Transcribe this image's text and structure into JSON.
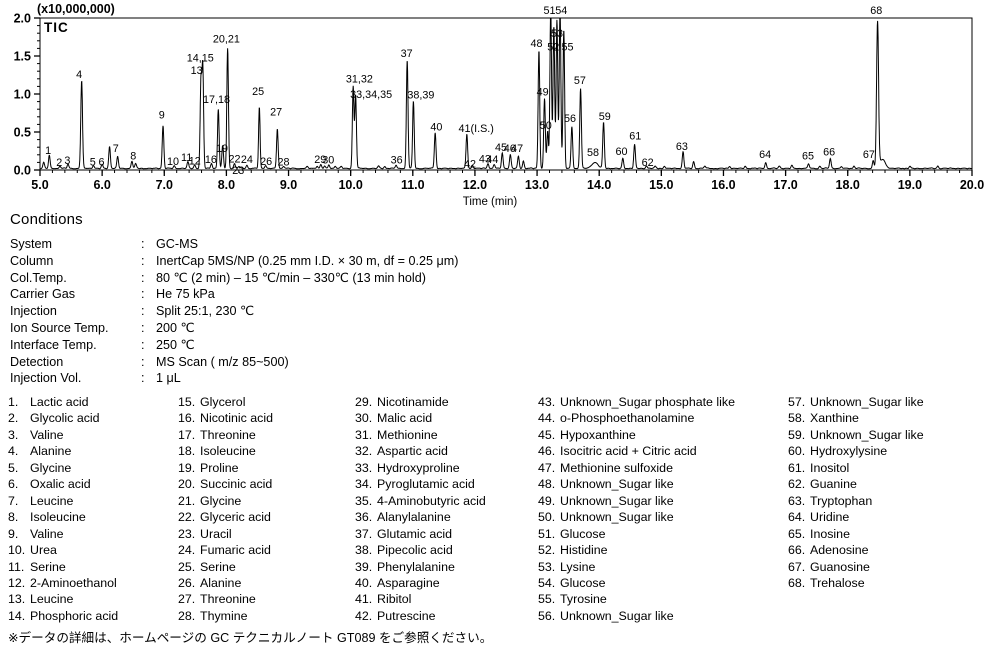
{
  "chart_data": {
    "type": "line",
    "trace_label": "TIC",
    "y_scale_label": "(x10,000,000)",
    "xlabel": "Time (min)",
    "xlim": [
      5.0,
      20.0
    ],
    "ylim": [
      0.0,
      2.0
    ],
    "x_major_tick": 1.0,
    "x_minor_tick": 0.2,
    "y_major_tick": 0.5,
    "y_minor_tick": 0.1,
    "x_tick_labels": [
      "5.0",
      "6.0",
      "7.0",
      "8.0",
      "9.0",
      "10.0",
      "11.0",
      "12.0",
      "13.0",
      "14.0",
      "15.0",
      "16.0",
      "17.0",
      "18.0",
      "19.0",
      "20.0"
    ],
    "y_tick_labels": [
      "0.0",
      "0.5",
      "1.0",
      "1.5",
      "2.0"
    ],
    "grid": false,
    "line_color": "#000000",
    "peaks": [
      {
        "label": "",
        "t": 5.06,
        "h": 0.08
      },
      {
        "label": "1",
        "t": 5.15,
        "h": 0.17,
        "lx": 5.13,
        "ly": 0.21
      },
      {
        "label": "2",
        "t": 5.32,
        "h": 0.03,
        "lx": 5.31,
        "ly": 0.05
      },
      {
        "label": "3",
        "t": 5.45,
        "h": 0.055,
        "lx": 5.44,
        "ly": 0.08
      },
      {
        "label": "4",
        "t": 5.67,
        "h": 1.15,
        "s": 0.014,
        "lx": 5.63,
        "ly": 1.21
      },
      {
        "label": "5",
        "t": 5.86,
        "h": 0.04,
        "lx": 5.85,
        "ly": 0.06
      },
      {
        "label": "6",
        "t": 6.0,
        "h": 0.05,
        "lx": 5.99,
        "ly": 0.062
      },
      {
        "label": "7",
        "t": 6.12,
        "h": 0.29,
        "lx": 6.22,
        "ly": 0.24
      },
      {
        "label": "",
        "t": 6.25,
        "h": 0.155
      },
      {
        "label": "8",
        "t": 6.48,
        "h": 0.095,
        "lx": 6.5,
        "ly": 0.135
      },
      {
        "label": "",
        "t": 6.54,
        "h": 0.06
      },
      {
        "label": "9",
        "t": 6.98,
        "h": 0.56,
        "lx": 6.96,
        "ly": 0.68
      },
      {
        "label": "10",
        "t": 7.16,
        "h": 0.035,
        "lx": 7.14,
        "ly": 0.065
      },
      {
        "label": "11",
        "t": 7.38,
        "h": 0.085,
        "lx": 7.36,
        "ly": 0.12
      },
      {
        "label": "12",
        "t": 7.49,
        "h": 0.05,
        "lx": 7.49,
        "ly": 0.075
      },
      {
        "label": "13",
        "t": 7.59,
        "h": 1.13,
        "lx": 7.52,
        "ly": 1.26
      },
      {
        "label": "14,15",
        "t": 7.62,
        "h": 1.33,
        "lx": 7.58,
        "ly": 1.43
      },
      {
        "label": "16",
        "t": 7.76,
        "h": 0.065,
        "lx": 7.75,
        "ly": 0.09
      },
      {
        "label": "17,18",
        "t": 7.87,
        "h": 0.78,
        "lx": 7.84,
        "ly": 0.88
      },
      {
        "label": "19",
        "t": 7.94,
        "h": 0.3,
        "lx": 7.93,
        "ly": 0.235
      },
      {
        "label": "20,21",
        "t": 8.02,
        "h": 1.58,
        "lx": 8.0,
        "ly": 1.68
      },
      {
        "label": "22",
        "t": 8.13,
        "h": 0.06,
        "lx": 8.13,
        "ly": 0.1
      },
      {
        "label": "23",
        "t": 8.2,
        "h": 0.025,
        "lx": 8.19,
        "ly": -0.055
      },
      {
        "label": "24",
        "t": 8.33,
        "h": 0.045,
        "lx": 8.33,
        "ly": 0.095
      },
      {
        "label": "25",
        "t": 8.53,
        "h": 0.8,
        "s": 0.012,
        "lx": 8.51,
        "ly": 0.99
      },
      {
        "label": "26",
        "t": 8.63,
        "h": 0.04,
        "lx": 8.64,
        "ly": 0.065
      },
      {
        "label": "27",
        "t": 8.82,
        "h": 0.52,
        "lx": 8.8,
        "ly": 0.72
      },
      {
        "label": "28",
        "t": 8.92,
        "h": 0.03,
        "lx": 8.92,
        "ly": 0.06
      },
      {
        "label": "",
        "t": 9.3,
        "h": 0.02
      },
      {
        "label": "",
        "t": 9.46,
        "h": 0.03
      },
      {
        "label": "29",
        "t": 9.52,
        "h": 0.05,
        "lx": 9.51,
        "ly": 0.095
      },
      {
        "label": "",
        "t": 9.58,
        "h": 0.03
      },
      {
        "label": "30",
        "t": 9.65,
        "h": 0.045,
        "lx": 9.64,
        "ly": 0.085
      },
      {
        "label": "",
        "t": 9.75,
        "h": 0.03
      },
      {
        "label": "",
        "t": 9.85,
        "h": 0.025
      },
      {
        "label": "31,32",
        "t": 10.04,
        "h": 1.08,
        "lx": 10.14,
        "ly": 1.15
      },
      {
        "label": "33,34,35",
        "t": 10.08,
        "h": 0.96,
        "lx": 10.33,
        "ly": 0.95
      },
      {
        "label": "",
        "t": 10.45,
        "h": 0.03
      },
      {
        "label": "",
        "t": 10.55,
        "h": 0.025
      },
      {
        "label": "36",
        "t": 10.73,
        "h": 0.045,
        "lx": 10.74,
        "ly": 0.085
      },
      {
        "label": "37",
        "t": 10.91,
        "h": 1.42,
        "lx": 10.9,
        "ly": 1.49
      },
      {
        "label": "38,39",
        "t": 11.01,
        "h": 0.88,
        "lx": 11.13,
        "ly": 0.94
      },
      {
        "label": "40",
        "t": 11.36,
        "h": 0.47,
        "lx": 11.38,
        "ly": 0.52
      },
      {
        "label": "41(I.S.)",
        "t": 11.87,
        "h": 0.45,
        "lx": 12.02,
        "ly": 0.5
      },
      {
        "label": "42",
        "t": 11.96,
        "h": 0.045,
        "lx": 11.92,
        "ly": 0.035
      },
      {
        "label": "43",
        "t": 12.21,
        "h": 0.065,
        "lx": 12.16,
        "ly": 0.1
      },
      {
        "label": "44",
        "t": 12.31,
        "h": 0.055,
        "lx": 12.28,
        "ly": 0.095
      },
      {
        "label": "45",
        "t": 12.44,
        "h": 0.2,
        "lx": 12.42,
        "ly": 0.25
      },
      {
        "label": "46",
        "t": 12.57,
        "h": 0.18,
        "lx": 12.56,
        "ly": 0.24
      },
      {
        "label": "47",
        "t": 12.7,
        "h": 0.16,
        "lx": 12.68,
        "ly": 0.235
      },
      {
        "label": "",
        "t": 12.78,
        "h": 0.1
      },
      {
        "label": "48",
        "t": 13.03,
        "h": 1.55,
        "lx": 12.99,
        "ly": 1.62
      },
      {
        "label": "49",
        "t": 13.12,
        "h": 0.92,
        "lx": 13.09,
        "ly": 0.98
      },
      {
        "label": "50",
        "t": 13.17,
        "h": 0.49,
        "lx": 13.14,
        "ly": 0.54
      },
      {
        "label": "51",
        "t": 13.22,
        "h": 2.1,
        "lx": 13.2,
        "ly": 2.05
      },
      {
        "label": "52",
        "t": 13.27,
        "h": 1.87,
        "lx": 13.26,
        "ly": 1.57
      },
      {
        "label": "53",
        "t": 13.32,
        "h": 1.95,
        "lx": 13.32,
        "ly": 1.75
      },
      {
        "label": "54",
        "t": 13.37,
        "h": 2.1,
        "lx": 13.39,
        "ly": 2.05
      },
      {
        "label": "55",
        "t": 13.43,
        "h": 1.82,
        "lx": 13.49,
        "ly": 1.57
      },
      {
        "label": "56",
        "t": 13.56,
        "h": 0.55,
        "lx": 13.53,
        "ly": 0.63
      },
      {
        "label": "57",
        "t": 13.7,
        "h": 1.05,
        "lx": 13.69,
        "ly": 1.13
      },
      {
        "label": "58",
        "t": 13.93,
        "h": 0.08,
        "s": 0.05,
        "lx": 13.9,
        "ly": 0.185
      },
      {
        "label": "59",
        "t": 14.07,
        "h": 0.6,
        "lx": 14.09,
        "ly": 0.66
      },
      {
        "label": "60",
        "t": 14.38,
        "h": 0.13,
        "lx": 14.36,
        "ly": 0.195
      },
      {
        "label": "61",
        "t": 14.57,
        "h": 0.31,
        "lx": 14.58,
        "ly": 0.4
      },
      {
        "label": "62",
        "t": 14.76,
        "h": 0.035,
        "lx": 14.78,
        "ly": 0.055
      },
      {
        "label": "",
        "t": 14.9,
        "h": 0.025
      },
      {
        "label": "",
        "t": 15.05,
        "h": 0.03
      },
      {
        "label": "63",
        "t": 15.35,
        "h": 0.22,
        "lx": 15.33,
        "ly": 0.26
      },
      {
        "label": "",
        "t": 15.52,
        "h": 0.09
      },
      {
        "label": "",
        "t": 15.7,
        "h": 0.03
      },
      {
        "label": "",
        "t": 16.1,
        "h": 0.025
      },
      {
        "label": "",
        "t": 16.35,
        "h": 0.03
      },
      {
        "label": "64",
        "t": 16.68,
        "h": 0.08,
        "lx": 16.67,
        "ly": 0.155
      },
      {
        "label": "",
        "t": 16.9,
        "h": 0.03
      },
      {
        "label": "",
        "t": 17.1,
        "h": 0.04
      },
      {
        "label": "65",
        "t": 17.37,
        "h": 0.06,
        "lx": 17.36,
        "ly": 0.135
      },
      {
        "label": "",
        "t": 17.55,
        "h": 0.03
      },
      {
        "label": "66",
        "t": 17.72,
        "h": 0.13,
        "lx": 17.7,
        "ly": 0.19
      },
      {
        "label": "",
        "t": 17.9,
        "h": 0.025
      },
      {
        "label": "",
        "t": 18.1,
        "h": 0.03
      },
      {
        "label": "67",
        "t": 18.41,
        "h": 0.1,
        "lx": 18.34,
        "ly": 0.155
      },
      {
        "label": "68",
        "t": 18.48,
        "h": 1.91,
        "s": 0.016,
        "lx": 18.46,
        "ly": 2.05
      },
      {
        "label": "",
        "t": 18.56,
        "h": 0.12,
        "s": 0.045
      },
      {
        "label": "",
        "t": 19.0,
        "h": 0.025
      },
      {
        "label": "",
        "t": 19.45,
        "h": 0.035
      }
    ]
  },
  "conditions": {
    "heading": "Conditions",
    "separator": ":",
    "rows": [
      {
        "label": "System",
        "value": "GC-MS"
      },
      {
        "label": "Column",
        "value": "InertCap 5MS/NP (0.25 mm I.D. × 30 m, df = 0.25  μm)"
      },
      {
        "label": "Col.Temp.",
        "value": "80 ℃ (2 min) – 15 ℃/min – 330℃ (13 min hold)"
      },
      {
        "label": "Carrier Gas",
        "value": "He 75 kPa"
      },
      {
        "label": "Injection",
        "value": "Split 25:1,  230 ℃"
      },
      {
        "label": "Ion Source Temp.",
        "value": "200 ℃"
      },
      {
        "label": "Interface Temp.",
        "value": "250 ℃"
      },
      {
        "label": "Detection",
        "value": "MS Scan (  m/z  85~500)"
      },
      {
        "label": "Injection Vol.",
        "value": "1  μL"
      }
    ]
  },
  "compounds": {
    "columns": [
      [
        {
          "num": "1.",
          "name": "Lactic acid"
        },
        {
          "num": "2.",
          "name": "Glycolic acid"
        },
        {
          "num": "3.",
          "name": "Valine"
        },
        {
          "num": "4.",
          "name": "Alanine"
        },
        {
          "num": "5.",
          "name": "Glycine"
        },
        {
          "num": "6.",
          "name": "Oxalic acid"
        },
        {
          "num": "7.",
          "name": "Leucine"
        },
        {
          "num": "8.",
          "name": "Isoleucine"
        },
        {
          "num": "9.",
          "name": "Valine"
        },
        {
          "num": "10.",
          "name": "Urea"
        },
        {
          "num": "11.",
          "name": "Serine"
        },
        {
          "num": "12.",
          "name": "2-Aminoethanol"
        },
        {
          "num": "13.",
          "name": "Leucine"
        },
        {
          "num": "14.",
          "name": "Phosphoric acid"
        }
      ],
      [
        {
          "num": "15.",
          "name": "Glycerol"
        },
        {
          "num": "16.",
          "name": "Nicotinic acid"
        },
        {
          "num": "17.",
          "name": "Threonine"
        },
        {
          "num": "18.",
          "name": "Isoleucine"
        },
        {
          "num": "19.",
          "name": "Proline"
        },
        {
          "num": "20.",
          "name": "Succinic acid"
        },
        {
          "num": "21.",
          "name": "Glycine"
        },
        {
          "num": "22.",
          "name": "Glyceric acid"
        },
        {
          "num": "23.",
          "name": "Uracil"
        },
        {
          "num": "24.",
          "name": "Fumaric acid"
        },
        {
          "num": "25.",
          "name": "Serine"
        },
        {
          "num": "26.",
          "name": "Alanine"
        },
        {
          "num": "27.",
          "name": "Threonine"
        },
        {
          "num": "28.",
          "name": "Thymine"
        }
      ],
      [
        {
          "num": "29.",
          "name": "Nicotinamide"
        },
        {
          "num": "30.",
          "name": "Malic acid"
        },
        {
          "num": "31.",
          "name": "Methionine"
        },
        {
          "num": "32.",
          "name": "Aspartic acid"
        },
        {
          "num": "33.",
          "name": "Hydroxyproline"
        },
        {
          "num": "34.",
          "name": "Pyroglutamic acid"
        },
        {
          "num": "35.",
          "name": "4-Aminobutyric acid"
        },
        {
          "num": "36.",
          "name": "Alanylalanine"
        },
        {
          "num": "37.",
          "name": "Glutamic acid"
        },
        {
          "num": "38.",
          "name": "Pipecolic acid"
        },
        {
          "num": "39.",
          "name": "Phenylalanine"
        },
        {
          "num": "40.",
          "name": "Asparagine"
        },
        {
          "num": "41.",
          "name": "Ribitol"
        },
        {
          "num": "42.",
          "name": "Putrescine"
        }
      ],
      [
        {
          "num": "43.",
          "name": "Unknown_Sugar phosphate like"
        },
        {
          "num": "44.",
          "name": "o-Phosphoethanolamine"
        },
        {
          "num": "45.",
          "name": "Hypoxanthine"
        },
        {
          "num": "46.",
          "name": "Isocitric acid + Citric acid"
        },
        {
          "num": "47.",
          "name": "Methionine sulfoxide"
        },
        {
          "num": "48.",
          "name": "Unknown_Sugar like"
        },
        {
          "num": "49.",
          "name": "Unknown_Sugar like"
        },
        {
          "num": "50.",
          "name": "Unknown_Sugar like"
        },
        {
          "num": "51.",
          "name": "Glucose"
        },
        {
          "num": "52.",
          "name": "Histidine"
        },
        {
          "num": "53.",
          "name": "Lysine"
        },
        {
          "num": "54.",
          "name": "Glucose"
        },
        {
          "num": "55.",
          "name": "Tyrosine"
        },
        {
          "num": "56.",
          "name": "Unknown_Sugar like"
        }
      ],
      [
        {
          "num": "57.",
          "name": "Unknown_Sugar like"
        },
        {
          "num": "58.",
          "name": "Xanthine"
        },
        {
          "num": "59.",
          "name": "Unknown_Sugar like"
        },
        {
          "num": "60.",
          "name": "Hydroxylysine"
        },
        {
          "num": "61.",
          "name": "Inositol"
        },
        {
          "num": "62.",
          "name": "Guanine"
        },
        {
          "num": "63.",
          "name": "Tryptophan"
        },
        {
          "num": "64.",
          "name": "Uridine"
        },
        {
          "num": "65.",
          "name": "Inosine"
        },
        {
          "num": "66.",
          "name": "Adenosine"
        },
        {
          "num": "67.",
          "name": "Guanosine"
        },
        {
          "num": "68.",
          "name": "Trehalose"
        }
      ]
    ]
  },
  "footnote": "※データの詳細は、ホームページの GC テクニカルノート GT089 をご参照ください。"
}
